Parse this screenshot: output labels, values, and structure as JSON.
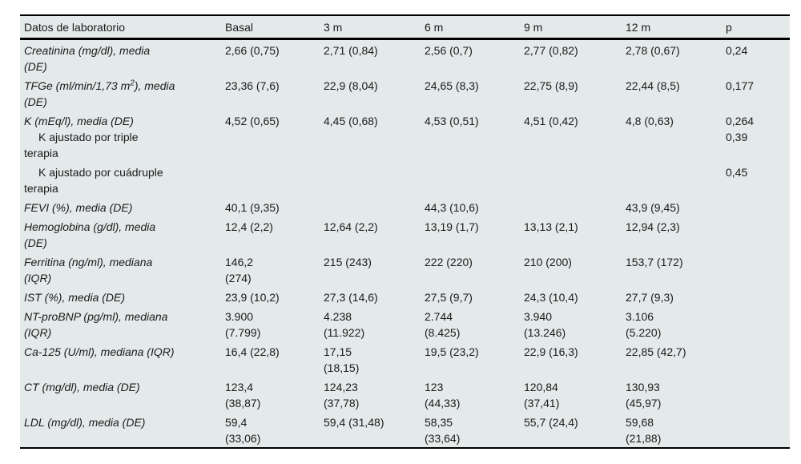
{
  "colors": {
    "table_bg": "#e4e9ea",
    "text": "#1b1b1b",
    "rule": "#000000"
  },
  "table": {
    "columns": [
      "Datos de laboratorio",
      "Basal",
      "3 m",
      "6 m",
      "9 m",
      "12 m",
      "p"
    ],
    "rows": [
      {
        "label": "Creatinina (mg/dl), media\n(DE)",
        "values": [
          "2,66 (0,75)",
          "2,71 (0,84)",
          "2,56 (0,7)",
          "2,77 (0,82)",
          "2,78 (0,67)"
        ],
        "p": "0,24"
      },
      {
        "label_parts": [
          {
            "t": "TFGe (ml/min/1,73 m"
          },
          {
            "t": "2",
            "sup": true
          },
          {
            "t": "), media\n(DE)"
          }
        ],
        "values": [
          "23,36 (7,6)",
          "22,9 (8,04)",
          "24,65 (8,3)",
          "22,75 (8,9)",
          "22,44 (8,5)"
        ],
        "p": "0,177"
      },
      {
        "label": "K (mEq/l), media (DE)",
        "sublabel": "K ajustado por triple\nterapia",
        "values": [
          "4,52 (0,65)",
          "4,45 (0,68)",
          "4,53 (0,51)",
          "4,51 (0,42)",
          "4,8 (0,63)"
        ],
        "p": "0,264\n0,39"
      },
      {
        "sublabel": "K ajustado por cuádruple\nterapia",
        "values": [
          "",
          "",
          "",
          "",
          ""
        ],
        "p": "0,45"
      },
      {
        "label": "FEVI (%), media (DE)",
        "values": [
          "40,1 (9,35)",
          "",
          "44,3 (10,6)",
          "",
          "43,9 (9,45)"
        ],
        "p": ""
      },
      {
        "label": "Hemoglobina (g/dl), media\n(DE)",
        "values": [
          "12,4 (2,2)",
          "12,64 (2,2)",
          "13,19 (1,7)",
          "13,13 (2,1)",
          "12,94 (2,3)"
        ],
        "p": ""
      },
      {
        "label": "Ferritina (ng/ml), mediana\n(IQR)",
        "values": [
          "146,2\n(274)",
          "215 (243)",
          "222 (220)",
          "210 (200)",
          "153,7 (172)"
        ],
        "p": ""
      },
      {
        "label": "IST (%), media (DE)",
        "values": [
          "23,9 (10,2)",
          "27,3 (14,6)",
          "27,5 (9,7)",
          "24,3 (10,4)",
          "27,7 (9,3)"
        ],
        "p": ""
      },
      {
        "label": "NT-proBNP (pg/ml), mediana\n(IQR)",
        "values": [
          "3.900\n(7.799)",
          "4.238\n(11.922)",
          "2.744\n(8.425)",
          "3.940\n(13.246)",
          "3.106\n(5.220)"
        ],
        "p": ""
      },
      {
        "label": "Ca-125 (U/ml), mediana (IQR)",
        "values": [
          "16,4 (22,8)",
          "17,15\n(18,15)",
          "19,5 (23,2)",
          "22,9 (16,3)",
          "22,85 (42,7)"
        ],
        "p": ""
      },
      {
        "label": "CT (mg/dl), media (DE)",
        "values": [
          "123,4\n(38,87)",
          "124,23\n(37,78)",
          "123\n(44,33)",
          "120,84\n(37,41)",
          "130,93\n(45,97)"
        ],
        "p": ""
      },
      {
        "label": "LDL (mg/dl), media (DE)",
        "values": [
          "59,4\n(33,06)",
          "59,4 (31,48)",
          "58,35\n(33,64)",
          "55,7 (24,4)",
          "59,68\n(21,88)"
        ],
        "p": ""
      }
    ]
  }
}
